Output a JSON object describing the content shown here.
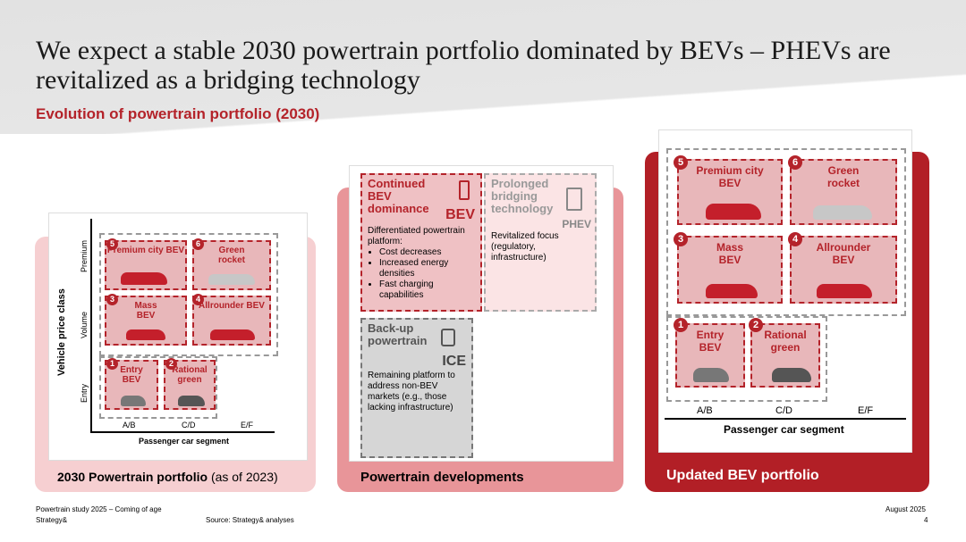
{
  "header": {
    "title": "We expect a stable 2030 powertrain portfolio dominated by BEVs – PHEVs are revitalized as a bridging technology",
    "subtitle": "Evolution of powertrain portfolio (2030)"
  },
  "left_panel": {
    "label": "2030 Powertrain portfolio",
    "label_suffix": "(as of 2023)",
    "y_axis": "Vehicle price class",
    "y_levels": [
      "Premium",
      "Volume",
      "Entry"
    ],
    "x_axis": "Passenger car segment",
    "x_levels": [
      "A/B",
      "C/D",
      "E/F"
    ],
    "cells": [
      {
        "n": "5",
        "label": "Premium city BEV"
      },
      {
        "n": "6",
        "label": "Green rocket"
      },
      {
        "n": "3",
        "label": "Mass BEV"
      },
      {
        "n": "4",
        "label": "Allrounder BEV"
      },
      {
        "n": "1",
        "label": "Entry BEV"
      },
      {
        "n": "2",
        "label": "Rational green"
      }
    ]
  },
  "middle_panel": {
    "label": "Powertrain developments",
    "bev": {
      "title": "Continued BEV dominance",
      "tag": "BEV",
      "intro": "Differentiated powertrain platform:",
      "bullets": [
        "Cost decreases",
        "Increased energy densities",
        "Fast charging capabilities"
      ]
    },
    "phev": {
      "title": "Prolonged bridging technology",
      "tag": "PHEV",
      "text": "Revitalized focus (regulatory, infrastructure)"
    },
    "ice": {
      "title": "Back-up powertrain",
      "tag": "ICE",
      "text": "Remaining platform to address non-BEV markets (e.g., those lacking infrastructure)"
    }
  },
  "right_panel": {
    "label": "Updated BEV portfolio",
    "x_axis": "Passenger car segment",
    "x_levels": [
      "A/B",
      "C/D",
      "E/F"
    ],
    "cells": [
      {
        "n": "5",
        "label": "Premium city BEV"
      },
      {
        "n": "6",
        "label": "Green rocket"
      },
      {
        "n": "3",
        "label": "Mass BEV"
      },
      {
        "n": "4",
        "label": "Allrounder BEV"
      },
      {
        "n": "1",
        "label": "Entry BEV"
      },
      {
        "n": "2",
        "label": "Rational green"
      }
    ]
  },
  "footer": {
    "study": "Powertrain study 2025 – Coming of age",
    "brand": "Strategy&",
    "source": "Source: Strategy& analyses",
    "date": "August 2025",
    "page": "4"
  }
}
